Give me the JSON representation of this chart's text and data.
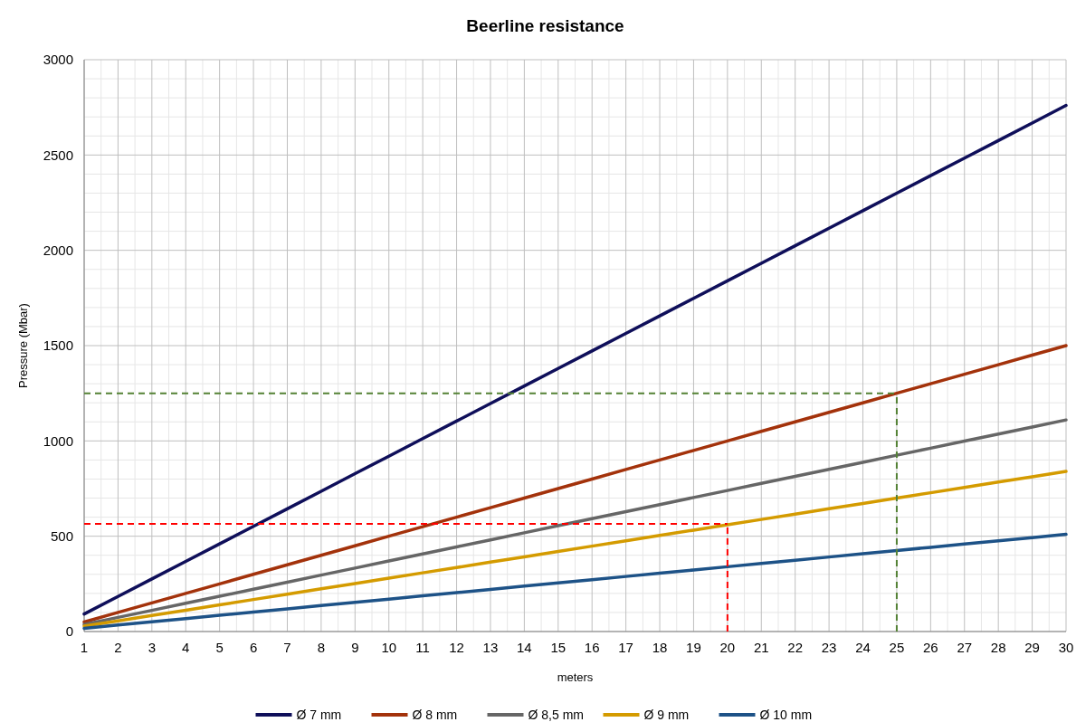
{
  "chart_data": {
    "type": "line",
    "title": "Beerline resistance",
    "xlabel": "meters",
    "ylabel": "Pressure (Mbar)",
    "x": [
      1,
      2,
      3,
      4,
      5,
      6,
      7,
      8,
      9,
      10,
      11,
      12,
      13,
      14,
      15,
      16,
      17,
      18,
      19,
      20,
      21,
      22,
      23,
      24,
      25,
      26,
      27,
      28,
      29,
      30
    ],
    "xlim": [
      1,
      30
    ],
    "xticks": [
      1,
      2,
      3,
      4,
      5,
      6,
      7,
      8,
      9,
      10,
      11,
      12,
      13,
      14,
      15,
      16,
      17,
      18,
      19,
      20,
      21,
      22,
      23,
      24,
      25,
      26,
      27,
      28,
      29,
      30
    ],
    "ylim": [
      0,
      3000
    ],
    "yticks": [
      0,
      500,
      1000,
      1500,
      2000,
      2500,
      3000
    ],
    "grid": true,
    "legend": "bottom",
    "line_style": "solid",
    "marker": "none",
    "series": [
      {
        "name": "Ø 7 mm",
        "color": "#0f0f5a",
        "values": [
          92,
          184,
          276,
          368,
          460,
          552,
          644,
          736,
          828,
          920,
          1012,
          1104,
          1196,
          1288,
          1380,
          1472,
          1564,
          1656,
          1748,
          1840,
          1932,
          2024,
          2116,
          2208,
          2300,
          2392,
          2484,
          2576,
          2668,
          2760
        ]
      },
      {
        "name": "Ø 8 mm",
        "color": "#a3320b",
        "values": [
          50,
          100,
          150,
          200,
          250,
          300,
          350,
          400,
          450,
          500,
          550,
          600,
          650,
          700,
          750,
          800,
          850,
          900,
          950,
          1000,
          1050,
          1100,
          1150,
          1200,
          1250,
          1300,
          1350,
          1400,
          1450,
          1500
        ]
      },
      {
        "name": "Ø 8,5 mm",
        "color": "#666666",
        "values": [
          37,
          74,
          111,
          148,
          185,
          222,
          259,
          296,
          333,
          370,
          407,
          444,
          481,
          518,
          555,
          592,
          629,
          666,
          703,
          740,
          777,
          814,
          851,
          888,
          925,
          962,
          999,
          1036,
          1073,
          1110
        ]
      },
      {
        "name": "Ø 9 mm",
        "color": "#d49b00",
        "values": [
          28,
          56,
          84,
          112,
          140,
          168,
          196,
          224,
          252,
          280,
          308,
          336,
          364,
          392,
          420,
          448,
          476,
          504,
          532,
          560,
          588,
          616,
          644,
          672,
          700,
          728,
          756,
          784,
          812,
          840
        ]
      },
      {
        "name": "Ø 10 mm",
        "color": "#1d5287",
        "values": [
          17,
          34,
          51,
          68,
          85,
          102,
          119,
          136,
          153,
          170,
          187,
          204,
          221,
          238,
          255,
          272,
          289,
          306,
          323,
          340,
          357,
          374,
          391,
          408,
          425,
          442,
          459,
          476,
          493,
          510
        ]
      }
    ],
    "ref_lines": [
      {
        "axis": "y",
        "value": 565,
        "color": "#ff0000",
        "line_style": "dashed"
      },
      {
        "axis": "x",
        "value": 20,
        "color": "#ff0000",
        "line_style": "dashed"
      },
      {
        "axis": "y",
        "value": 1250,
        "color": "#548235",
        "line_style": "dashed"
      },
      {
        "axis": "x",
        "value": 25,
        "color": "#548235",
        "line_style": "dashed"
      }
    ]
  }
}
